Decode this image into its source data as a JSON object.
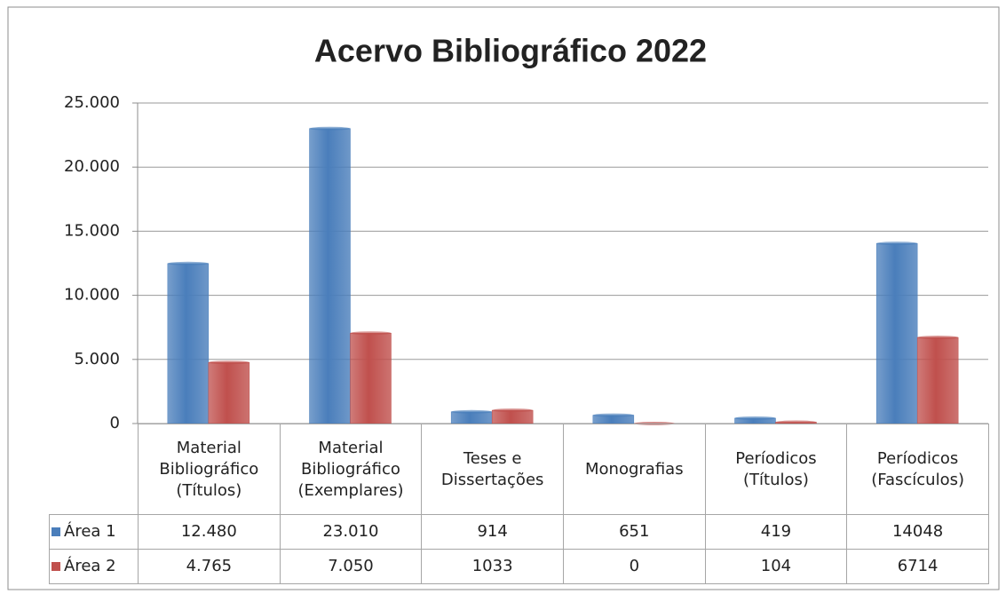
{
  "chart_data": {
    "type": "bar",
    "title": "Acervo Bibliográfico 2022",
    "categories": [
      "Material Bibliográfico (Títulos)",
      "Material Bibliográfico (Exemplares)",
      "Teses e Dissertações",
      "Monografias",
      "Períodicos (Títulos)",
      "Períodicos (Fascículos)"
    ],
    "series": [
      {
        "name": "Área 1",
        "color": "#4a7ebb",
        "values": [
          12480,
          23010,
          914,
          651,
          419,
          14048
        ],
        "value_labels": [
          "12.480",
          "23.010",
          "914",
          "651",
          "419",
          "14048"
        ]
      },
      {
        "name": "Área 2",
        "color": "#c0504d",
        "values": [
          4765,
          7050,
          1033,
          0,
          104,
          6714
        ],
        "value_labels": [
          "4.765",
          "7.050",
          "1033",
          "0",
          "104",
          "6714"
        ]
      }
    ],
    "ylim": [
      0,
      25000
    ],
    "yticks": [
      {
        "value": 0,
        "label": "0"
      },
      {
        "value": 5000,
        "label": "5.000"
      },
      {
        "value": 10000,
        "label": "10.000"
      },
      {
        "value": 15000,
        "label": "15.000"
      },
      {
        "value": 20000,
        "label": "20.000"
      },
      {
        "value": 25000,
        "label": "25.000"
      }
    ],
    "grid": true
  }
}
